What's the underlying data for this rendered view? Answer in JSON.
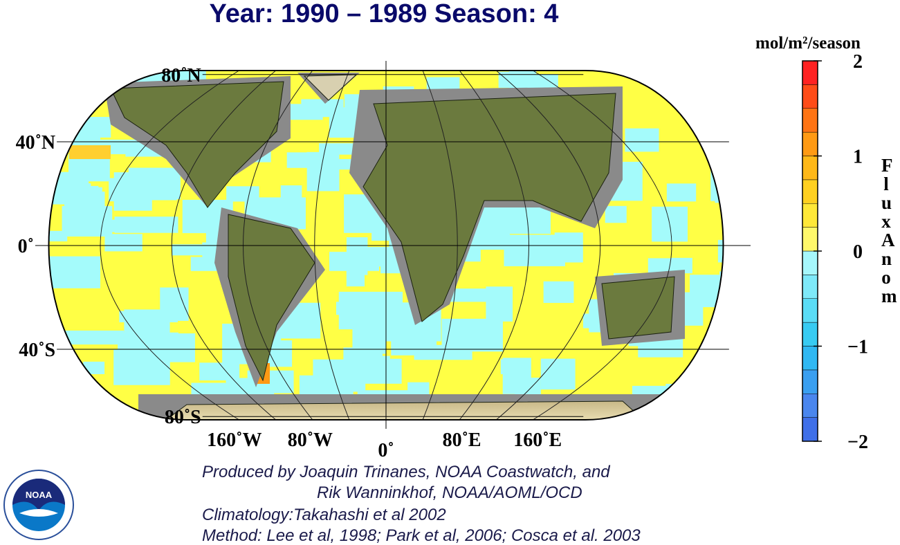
{
  "title": "Year: 1990 – 1989  Season: 4",
  "map": {
    "lat_ticks": [
      {
        "value": 80,
        "label": "80˚N"
      },
      {
        "value": 40,
        "label": "40˚N"
      },
      {
        "value": 0,
        "label": "0˚"
      },
      {
        "value": -40,
        "label": "40˚S"
      },
      {
        "value": -80,
        "label": "80˚S"
      }
    ],
    "lon_ticks": [
      {
        "value": -160,
        "label": "160˚W"
      },
      {
        "value": -80,
        "label": "80˚W"
      },
      {
        "value": 0,
        "label": "0˚"
      },
      {
        "value": 80,
        "label": "80˚E"
      },
      {
        "value": 160,
        "label": "160˚E"
      }
    ]
  },
  "colorbar": {
    "units": "mol/m²/season",
    "label": "Flux Anom",
    "lim": [
      -2,
      2
    ],
    "ticks": [
      {
        "value": 2,
        "label": "2"
      },
      {
        "value": 1,
        "label": "1"
      },
      0,
      {
        "value": -1,
        "label": "−1"
      },
      {
        "value": -2,
        "label": "−2"
      }
    ],
    "colors": [
      "#3f6fe8",
      "#4a86ee",
      "#3a9ff0",
      "#30b8f2",
      "#38cbf2",
      "#5adcf6",
      "#7ee9f9",
      "#a6f7fc",
      "#fff86a",
      "#ffe838",
      "#ffd020",
      "#ffb818",
      "#ff9a14",
      "#ff7414",
      "#ff4c18",
      "#ff2222"
    ]
  },
  "credits": [
    "Produced by Joaquin Trinanes, NOAA Coastwatch, and",
    "Rik Wanninkhof, NOAA/AOML/OCD",
    "Climatology:Takahashi et al 2002",
    "Method: Lee et al, 1998; Park et al, 2006; Cosca et al. 2003"
  ],
  "logo": {
    "text": "NOAA"
  }
}
